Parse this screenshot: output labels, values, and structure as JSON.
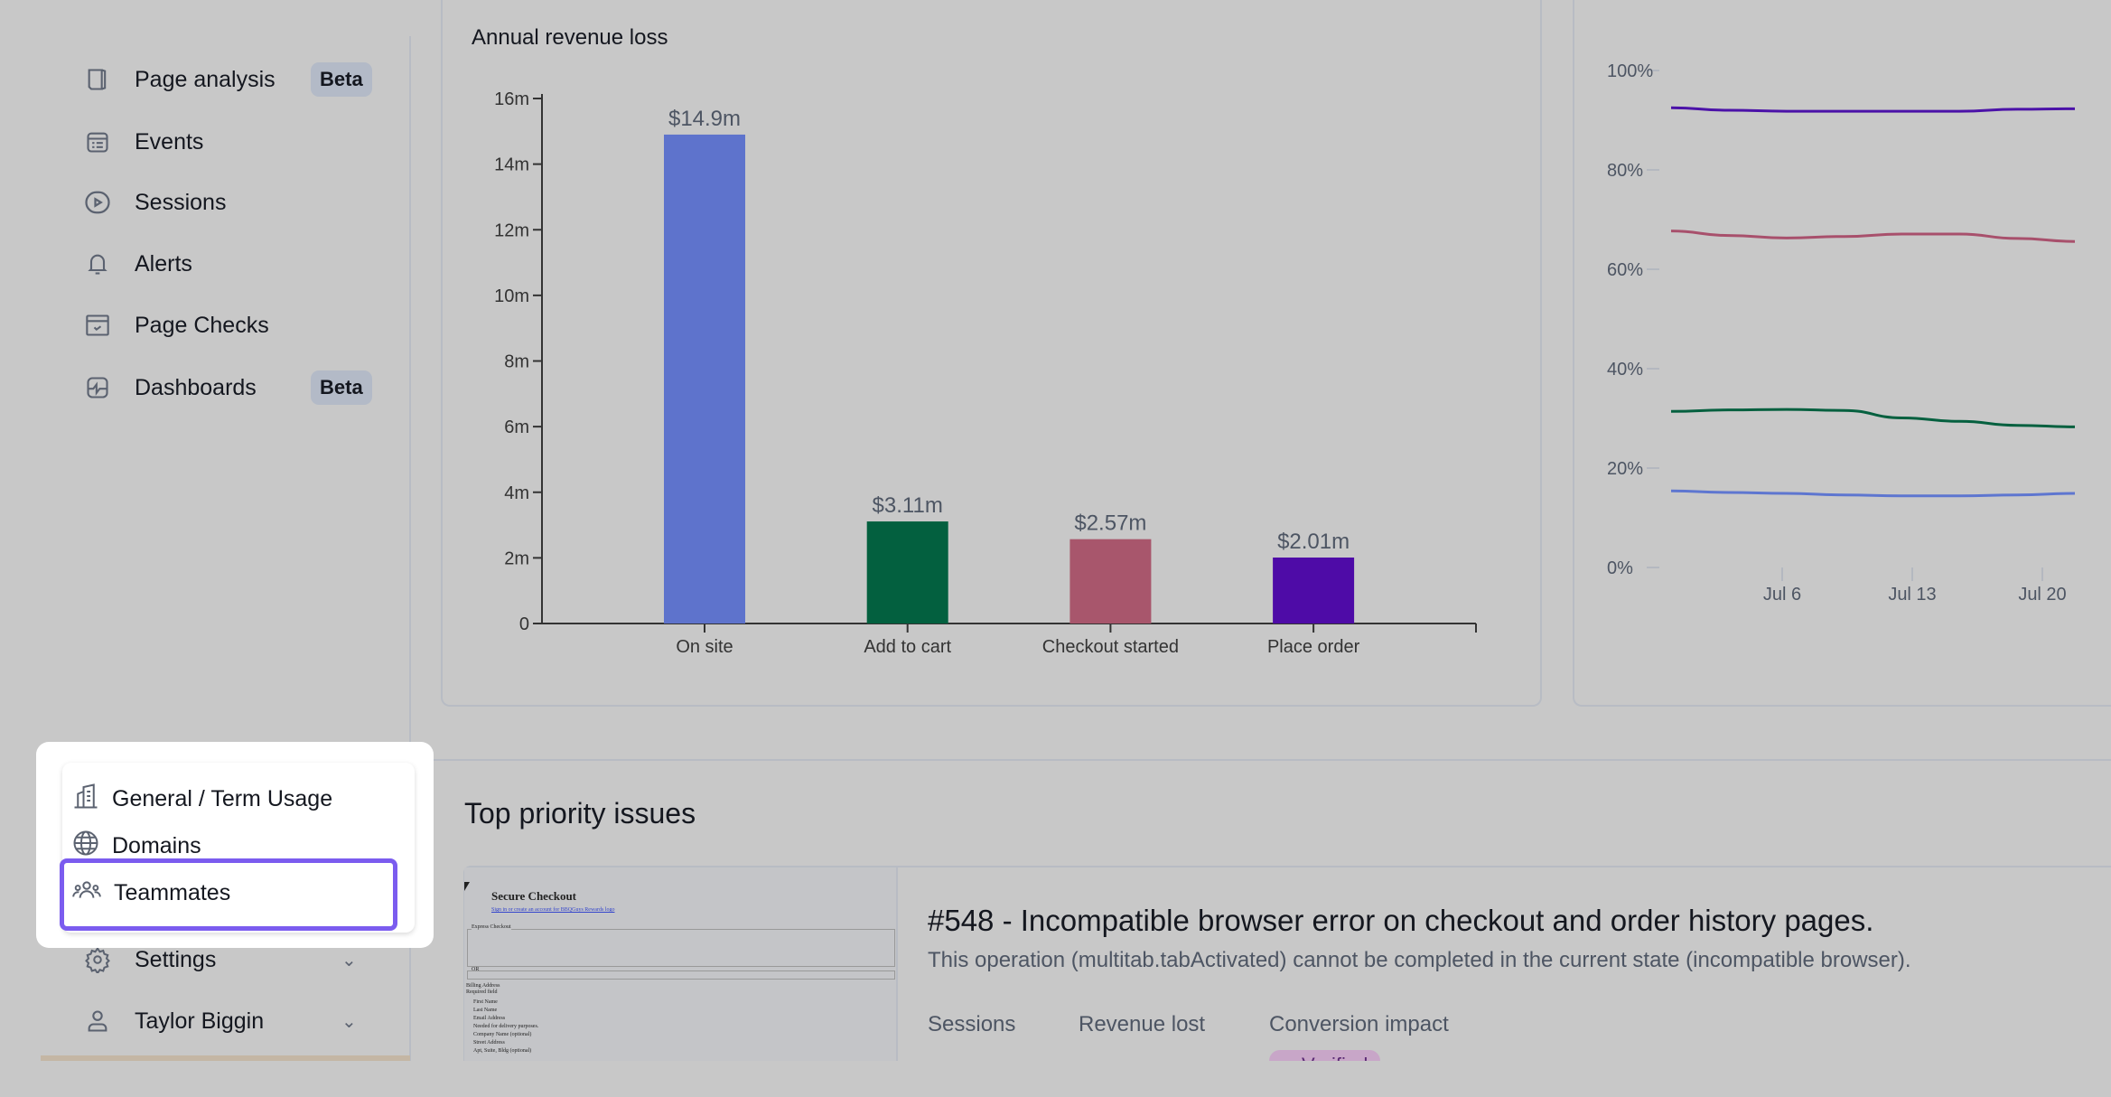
{
  "sidebar": {
    "items": [
      {
        "label": "Page analysis",
        "badge": "Beta",
        "icon": "book-icon"
      },
      {
        "label": "Events",
        "icon": "calendar-list-icon"
      },
      {
        "label": "Sessions",
        "icon": "play-icon"
      },
      {
        "label": "Alerts",
        "icon": "bell-icon"
      },
      {
        "label": "Page Checks",
        "icon": "browser-check-icon"
      },
      {
        "label": "Dashboards",
        "badge": "Beta",
        "icon": "dashboard-icon"
      }
    ],
    "settings": "Settings",
    "user": "Taylor Biggin"
  },
  "settings_menu": {
    "items": [
      {
        "label": "General / Term Usage",
        "icon": "building-icon"
      },
      {
        "label": "Domains",
        "icon": "globe-icon"
      },
      {
        "label": "Teammates",
        "icon": "users-icon"
      }
    ]
  },
  "chart_data": [
    {
      "type": "bar",
      "title": "Annual revenue loss",
      "categories": [
        "On site",
        "Add to cart",
        "Checkout started",
        "Place order"
      ],
      "values": [
        14.9,
        3.11,
        2.57,
        2.01
      ],
      "labels": [
        "$14.9m",
        "$3.11m",
        "$2.57m",
        "$2.01m"
      ],
      "colors": [
        "#5e73cc",
        "#03603f",
        "#a8566c",
        "#4e0ba7"
      ],
      "yticks": [
        "0",
        "2m",
        "4m",
        "6m",
        "8m",
        "10m",
        "12m",
        "14m",
        "16m"
      ],
      "ylim": [
        0,
        16
      ],
      "ylabel": "",
      "xlabel": ""
    },
    {
      "type": "line",
      "yticks": [
        "0%",
        "20%",
        "40%",
        "60%",
        "80%",
        "100%"
      ],
      "ylim": [
        0,
        100
      ],
      "xticks": [
        "Jul 6",
        "Jul 13",
        "Jul 20"
      ],
      "x": [
        "Jun 30",
        "Jul 3",
        "Jul 6",
        "Jul 9",
        "Jul 12",
        "Jul 15",
        "Jul 18",
        "Jul 21"
      ],
      "series": [
        {
          "color": "#4b12a8",
          "values": [
            92.5,
            92,
            91.8,
            91.8,
            91.8,
            91.8,
            92.2,
            92.3
          ]
        },
        {
          "color": "#a8506c",
          "values": [
            67.7,
            66.8,
            66.3,
            66.6,
            67.1,
            67.1,
            66.2,
            65.6
          ]
        },
        {
          "color": "#05603f",
          "values": [
            31.4,
            31.7,
            31.8,
            31.6,
            30.1,
            29.4,
            28.6,
            28.3
          ]
        },
        {
          "color": "#5e76d0",
          "values": [
            15.4,
            15.1,
            14.9,
            14.6,
            14.4,
            14.4,
            14.6,
            14.9
          ]
        }
      ]
    }
  ],
  "issues": {
    "title": "Top priority issues",
    "item": {
      "title": "#548 - Incompatible browser error on checkout and order history pages.",
      "description": "This operation (multitab.tabActivated) cannot be completed in the current state (incompatible browser).",
      "stats": {
        "sessions_label": "Sessions",
        "revenue_label": "Revenue lost",
        "impact_label": "Conversion impact",
        "impact_badge": "Verified"
      },
      "thumbnail": {
        "heading": "Secure Checkout",
        "signin": "Sign in or create an account for BBQGuys Rewards logo",
        "express": "Express Checkout",
        "or": "OR",
        "billing": "Billing Address",
        "required": "Required field",
        "fields": [
          "First Name",
          "Last Name",
          "Email Address",
          "Needed for delivery purposes.",
          "Company Name (optional)",
          "Street Address",
          "Apt, Suite, Bldg (optional)"
        ]
      }
    }
  }
}
